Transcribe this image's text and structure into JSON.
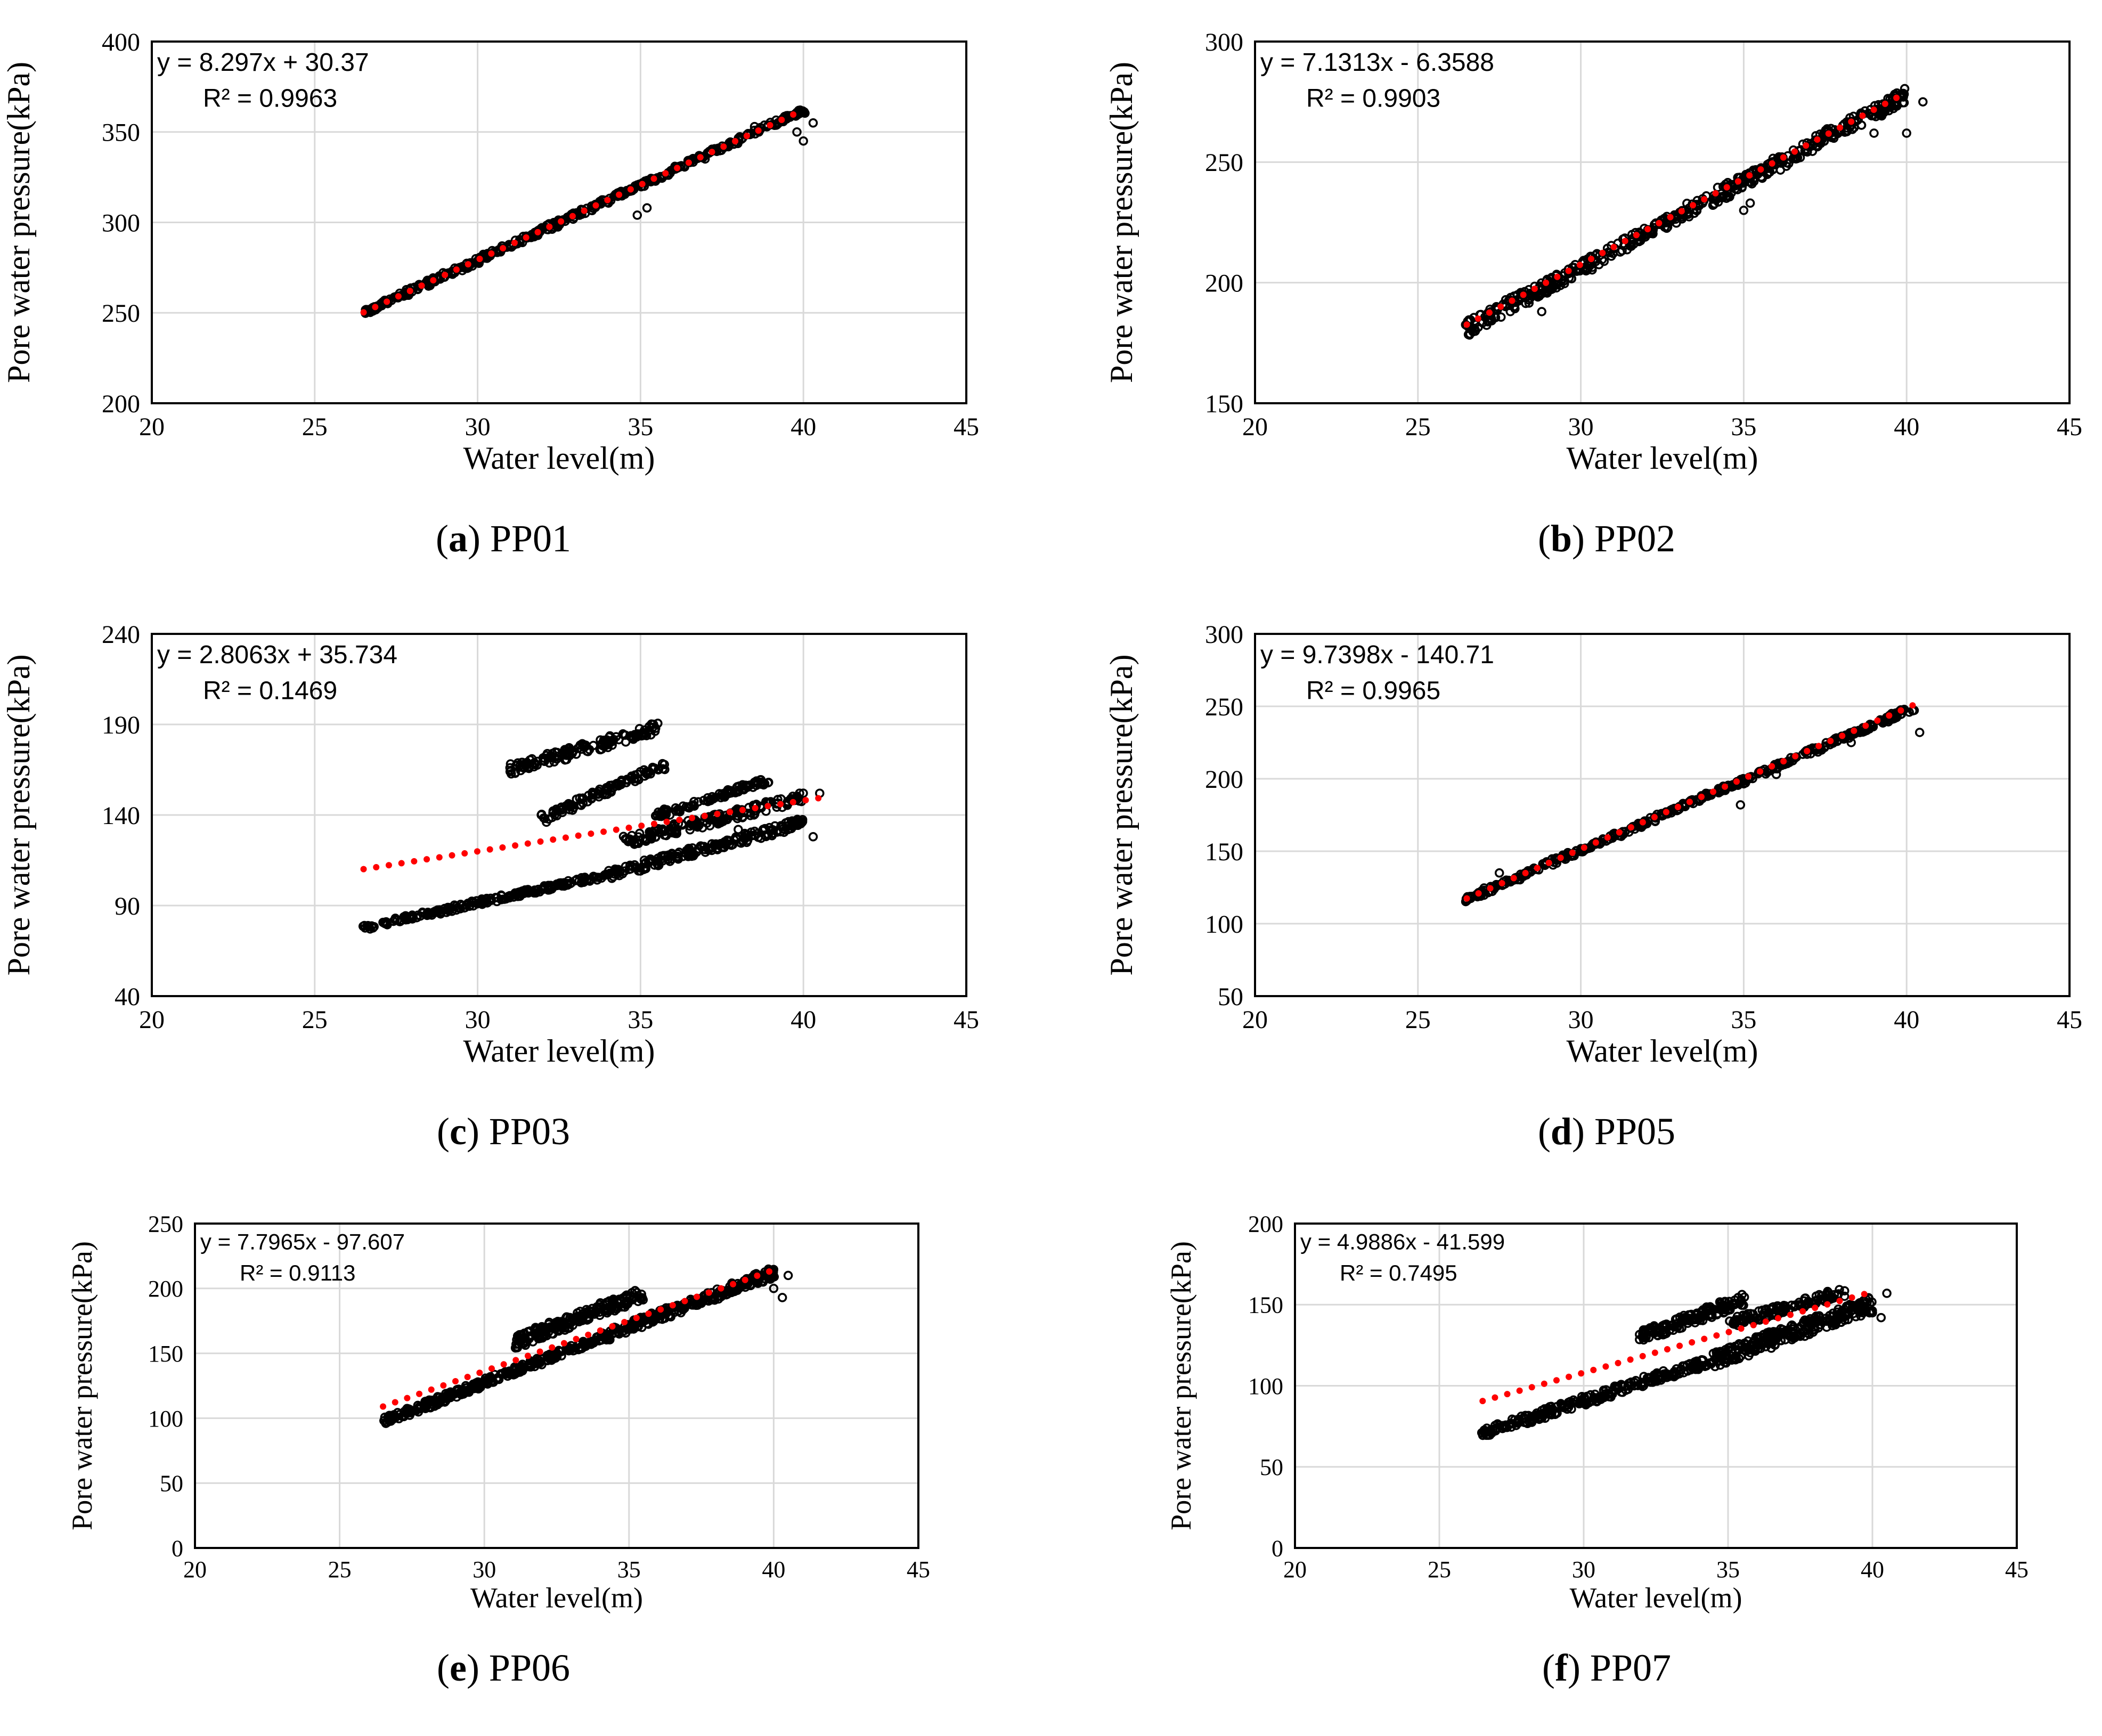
{
  "figure": {
    "x_axis_label": "Water level(m)",
    "y_axis_label": "Pore water pressure(kPa)"
  },
  "colors": {
    "points": "#000000",
    "trendline": "#ff0000",
    "grid": "#d9d9d9",
    "frame": "#000000"
  },
  "chart_data": [
    {
      "type": "scatter",
      "caption_letter": "a",
      "caption_name": "PP01",
      "title": "PP01",
      "xlabel": "Water level(m)",
      "ylabel": "Pore water pressure(kPa)",
      "xlim": [
        20,
        45
      ],
      "ylim": [
        200,
        400
      ],
      "x_ticks": [
        "20",
        "25",
        "30",
        "35",
        "40",
        "45"
      ],
      "y_ticks": [
        "200",
        "250",
        "300",
        "350",
        "400"
      ],
      "equation": "y = 8.297x + 30.37",
      "r_squared": "R² = 0.9963",
      "trend": {
        "slope": 8.297,
        "intercept": 30.37,
        "x_range": [
          26.5,
          40.0
        ]
      },
      "clusters": [
        {
          "x0": 26.5,
          "y0": 250,
          "x1": 40.0,
          "y1": 362,
          "thickness": 1.5,
          "count": 420
        }
      ],
      "outliers": [
        [
          34.9,
          304
        ],
        [
          35.2,
          308
        ],
        [
          40.0,
          345
        ],
        [
          40.3,
          355
        ],
        [
          39.8,
          350
        ],
        [
          38.5,
          353
        ]
      ]
    },
    {
      "type": "scatter",
      "caption_letter": "b",
      "caption_name": "PP02",
      "title": "PP02",
      "xlabel": "Water level(m)",
      "ylabel": "Pore water pressure(kPa)",
      "xlim": [
        20,
        45
      ],
      "ylim": [
        150,
        300
      ],
      "x_ticks": [
        "20",
        "25",
        "30",
        "35",
        "40",
        "45"
      ],
      "y_ticks": [
        "150",
        "200",
        "250",
        "300"
      ],
      "equation": "y = 7.1313x - 6.3588",
      "r_squared": "R² = 0.9903",
      "trend": {
        "slope": 7.1313,
        "intercept": -6.3588,
        "x_range": [
          26.5,
          40.0
        ]
      },
      "clusters": [
        {
          "x0": 26.5,
          "y0": 181,
          "x1": 40.0,
          "y1": 278,
          "thickness": 3.0,
          "count": 520
        }
      ],
      "outliers": [
        [
          28.8,
          188
        ],
        [
          35.0,
          230
        ],
        [
          35.2,
          233
        ],
        [
          39.0,
          262
        ],
        [
          40.0,
          262
        ],
        [
          40.5,
          275
        ]
      ]
    },
    {
      "type": "scatter",
      "caption_letter": "c",
      "caption_name": "PP03",
      "title": "PP03",
      "xlabel": "Water level(m)",
      "ylabel": "Pore water pressure(kPa)",
      "xlim": [
        20,
        45
      ],
      "ylim": [
        40,
        240
      ],
      "x_ticks": [
        "20",
        "25",
        "30",
        "35",
        "40",
        "45"
      ],
      "y_ticks": [
        "40",
        "90",
        "140",
        "190",
        "240"
      ],
      "equation": "y = 2.8063x + 35.734",
      "r_squared": "R² = 0.1469",
      "trend": {
        "slope": 2.8063,
        "intercept": 35.734,
        "x_range": [
          26.5,
          40.5
        ]
      },
      "clusters": [
        {
          "x0": 26.5,
          "y0": 78,
          "x1": 34.0,
          "y1": 107,
          "thickness": 1.5,
          "count": 220
        },
        {
          "x0": 34.0,
          "y0": 107,
          "x1": 40.0,
          "y1": 136,
          "thickness": 2.5,
          "count": 200
        },
        {
          "x0": 34.5,
          "y0": 125,
          "x1": 40.0,
          "y1": 150,
          "thickness": 3.0,
          "count": 180
        },
        {
          "x0": 35.5,
          "y0": 140,
          "x1": 39.0,
          "y1": 160,
          "thickness": 2.0,
          "count": 100
        },
        {
          "x0": 32.0,
          "y0": 138,
          "x1": 35.8,
          "y1": 168,
          "thickness": 2.5,
          "count": 100
        },
        {
          "x0": 31.0,
          "y0": 165,
          "x1": 35.5,
          "y1": 188,
          "thickness": 3.0,
          "count": 140
        }
      ],
      "outliers": [
        [
          40.3,
          128
        ],
        [
          40.5,
          152
        ],
        [
          38.0,
          132
        ]
      ]
    },
    {
      "type": "scatter",
      "caption_letter": "d",
      "caption_name": "PP05",
      "title": "PP05",
      "xlabel": "Water level(m)",
      "ylabel": "Pore water pressure(kPa)",
      "xlim": [
        20,
        45
      ],
      "ylim": [
        50,
        300
      ],
      "x_ticks": [
        "20",
        "25",
        "30",
        "35",
        "40",
        "45"
      ],
      "y_ticks": [
        "50",
        "100",
        "150",
        "200",
        "250",
        "300"
      ],
      "equation": "y = 9.7398x - 140.71",
      "r_squared": "R² = 0.9965",
      "trend": {
        "slope": 9.7398,
        "intercept": -140.71,
        "x_range": [
          26.5,
          40.3
        ]
      },
      "clusters": [
        {
          "x0": 26.5,
          "y0": 117,
          "x1": 40.2,
          "y1": 249,
          "thickness": 2.0,
          "count": 420
        }
      ],
      "outliers": [
        [
          27.5,
          135
        ],
        [
          34.9,
          182
        ],
        [
          40.4,
          232
        ],
        [
          38.3,
          225
        ],
        [
          36.0,
          203
        ]
      ]
    },
    {
      "type": "scatter",
      "caption_letter": "e",
      "caption_name": "PP06",
      "title": "PP06",
      "xlabel": "Water level(m)",
      "ylabel": "Pore water pressure(kPa)",
      "xlim": [
        20,
        45
      ],
      "ylim": [
        0,
        250
      ],
      "x_ticks": [
        "20",
        "25",
        "30",
        "35",
        "40",
        "45"
      ],
      "y_ticks": [
        "0",
        "50",
        "100",
        "150",
        "200",
        "250"
      ],
      "equation": "y = 7.7965x - 97.607",
      "r_squared": "R² = 0.9113",
      "trend": {
        "slope": 7.7965,
        "intercept": -97.607,
        "x_range": [
          26.5,
          40.2
        ]
      },
      "clusters": [
        {
          "x0": 26.5,
          "y0": 97,
          "x1": 34.0,
          "y1": 162,
          "thickness": 3.0,
          "count": 280
        },
        {
          "x0": 34.0,
          "y0": 162,
          "x1": 40.0,
          "y1": 212,
          "thickness": 4.0,
          "count": 280
        },
        {
          "x0": 31.0,
          "y0": 158,
          "x1": 35.5,
          "y1": 196,
          "thickness": 5.0,
          "count": 200
        }
      ],
      "outliers": [
        [
          40.3,
          193
        ],
        [
          40.0,
          200
        ],
        [
          40.5,
          210
        ]
      ]
    },
    {
      "type": "scatter",
      "caption_letter": "f",
      "caption_name": "PP07",
      "title": "PP07",
      "xlabel": "Water level(m)",
      "ylabel": "Pore water pressure(kPa)",
      "xlim": [
        20,
        45
      ],
      "ylim": [
        0,
        200
      ],
      "x_ticks": [
        "20",
        "25",
        "30",
        "35",
        "40",
        "45"
      ],
      "y_ticks": [
        "0",
        "50",
        "100",
        "150",
        "200"
      ],
      "equation": "y = 4.9886x - 41.599",
      "r_squared": "R² = 0.7495",
      "trend": {
        "slope": 4.9886,
        "intercept": -41.599,
        "x_range": [
          26.5,
          40.0
        ]
      },
      "clusters": [
        {
          "x0": 26.5,
          "y0": 71,
          "x1": 34.5,
          "y1": 116,
          "thickness": 3.0,
          "count": 260
        },
        {
          "x0": 34.5,
          "y0": 116,
          "x1": 40.0,
          "y1": 150,
          "thickness": 5.0,
          "count": 260
        },
        {
          "x0": 32.0,
          "y0": 130,
          "x1": 35.5,
          "y1": 153,
          "thickness": 4.0,
          "count": 140
        },
        {
          "x0": 35.0,
          "y0": 138,
          "x1": 39.0,
          "y1": 158,
          "thickness": 3.0,
          "count": 120
        }
      ],
      "outliers": [
        [
          40.3,
          142
        ],
        [
          40.0,
          145
        ],
        [
          40.5,
          157
        ]
      ]
    }
  ]
}
